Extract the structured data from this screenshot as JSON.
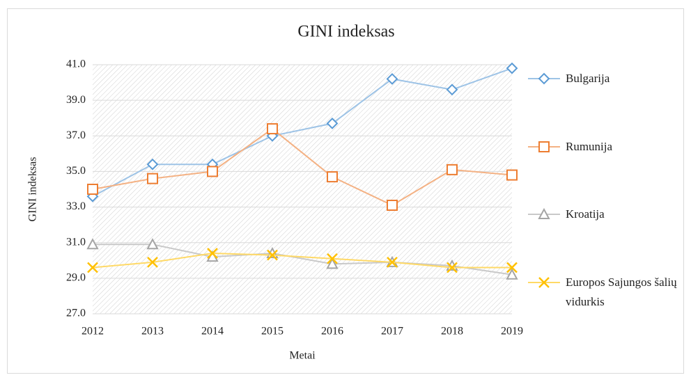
{
  "chart_data": {
    "type": "line",
    "title": "GINI indeksas",
    "x_label": "Metai",
    "y_label": "GINI indeksas",
    "categories": [
      "2012",
      "2013",
      "2014",
      "2015",
      "2016",
      "2017",
      "2018",
      "2019"
    ],
    "series": [
      {
        "name": "Bulgarija",
        "color": "#5b9bd5",
        "line_color": "#9dc3e6",
        "marker": "diamond",
        "values": [
          33.6,
          35.4,
          35.4,
          37.0,
          37.7,
          40.2,
          39.6,
          40.8
        ]
      },
      {
        "name": "Rumunija",
        "color": "#ed7d31",
        "line_color": "#f4b183",
        "marker": "square",
        "values": [
          34.0,
          34.6,
          35.0,
          37.4,
          34.7,
          33.1,
          35.1,
          34.8
        ]
      },
      {
        "name": "Kroatija",
        "color": "#a5a5a5",
        "line_color": "#c9c9c9",
        "marker": "triangle",
        "values": [
          30.9,
          30.9,
          30.2,
          30.4,
          29.8,
          29.9,
          29.7,
          29.2
        ]
      },
      {
        "name": "Europos Sajungos šalių vidurkis",
        "color": "#ffc000",
        "line_color": "#ffd966",
        "marker": "x",
        "values": [
          29.6,
          29.9,
          30.4,
          30.3,
          30.1,
          29.9,
          29.6,
          29.6
        ]
      }
    ],
    "ylim": [
      27,
      41
    ],
    "yticks": [
      {
        "value": 27,
        "label": "27.0"
      },
      {
        "value": 29,
        "label": "29.0"
      },
      {
        "value": 31,
        "label": "31.0"
      },
      {
        "value": 33,
        "label": "33.0"
      },
      {
        "value": 35,
        "label": "35.0"
      },
      {
        "value": 37,
        "label": "37.0"
      },
      {
        "value": 39,
        "label": "39.0"
      },
      {
        "value": 41,
        "label": "41.0"
      }
    ],
    "grid": true,
    "legend": "right"
  }
}
